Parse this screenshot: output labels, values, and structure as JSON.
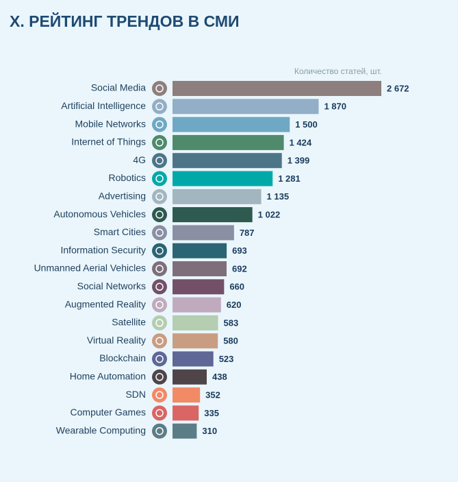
{
  "chart_data": {
    "type": "bar",
    "orientation": "horizontal",
    "title": "X. РЕЙТИНГ ТРЕНДОВ В СМИ",
    "x_label": "Количество статей, шт.",
    "categories": [
      "Social Media",
      "Artificial Intelligence",
      "Mobile Networks",
      "Internet of Things",
      "4G",
      "Robotics",
      "Advertising",
      "Autonomous Vehicles",
      "Smart Cities",
      "Information Security",
      "Unmanned Aerial Vehicles",
      "Social Networks",
      "Augmented Reality",
      "Satellite",
      "Virtual Reality",
      "Blockchain",
      "Home Automation",
      "SDN",
      "Computer Games",
      "Wearable Computing"
    ],
    "values": [
      2672,
      1870,
      1500,
      1424,
      1399,
      1281,
      1135,
      1022,
      787,
      693,
      692,
      660,
      620,
      583,
      580,
      523,
      438,
      352,
      335,
      310
    ],
    "value_labels": [
      "2 672",
      "1 870",
      "1 500",
      "1 424",
      "1 399",
      "1 281",
      "1 135",
      "1 022",
      "787",
      "693",
      "692",
      "660",
      "620",
      "583",
      "580",
      "523",
      "438",
      "352",
      "335",
      "310"
    ],
    "colors": [
      "#8d7f7d",
      "#93aec7",
      "#6fa8c4",
      "#4f8a6c",
      "#4d7588",
      "#00a9a8",
      "#a3b6c0",
      "#2e5a50",
      "#8a8fa3",
      "#2b6472",
      "#7e6e7c",
      "#735068",
      "#c0abbe",
      "#b5cdb0",
      "#c99d82",
      "#5e6795",
      "#4f4548",
      "#f28a66",
      "#d96664",
      "#5d7d86"
    ]
  }
}
